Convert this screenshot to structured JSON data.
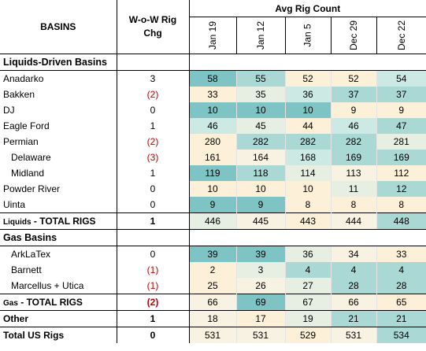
{
  "header": {
    "basins": "BASINS",
    "wow_line1": "W-o-W Rig",
    "wow_line2": "Chg",
    "avg": "Avg Rig Count",
    "dates": [
      "Jan 19",
      "Jan 12",
      "Jan 5",
      "Dec 29",
      "Dec 22"
    ]
  },
  "colors": {
    "teal_dark": "#7fc4c4",
    "teal_mid": "#a9d8d5",
    "teal_light": "#cde9e3",
    "neutral": "#e6efe2",
    "cream_light": "#f7f2e2",
    "cream": "#fcf0d8",
    "negative_text": "#c00000"
  },
  "sections": {
    "liquids": "Liquids-Driven Basins",
    "gas": "Gas Basins"
  },
  "rows": [
    {
      "id": "anadarko",
      "name": "Anadarko",
      "chg": "3",
      "neg": false,
      "values": [
        "58",
        "55",
        "52",
        "52",
        "54"
      ],
      "shades": [
        "teal_dark",
        "teal_mid",
        "cream",
        "cream",
        "teal_light"
      ],
      "indent": false
    },
    {
      "id": "bakken",
      "name": "Bakken",
      "chg": "(2)",
      "neg": true,
      "values": [
        "33",
        "35",
        "36",
        "37",
        "37"
      ],
      "shades": [
        "cream",
        "neutral",
        "teal_light",
        "teal_mid",
        "teal_mid"
      ],
      "indent": false
    },
    {
      "id": "dj",
      "name": "DJ",
      "chg": "0",
      "neg": false,
      "values": [
        "10",
        "10",
        "10",
        "9",
        "9"
      ],
      "shades": [
        "teal_dark",
        "teal_dark",
        "teal_dark",
        "cream",
        "cream"
      ],
      "indent": false
    },
    {
      "id": "eagle-ford",
      "name": "Eagle Ford",
      "chg": "1",
      "neg": false,
      "values": [
        "46",
        "45",
        "44",
        "46",
        "47"
      ],
      "shades": [
        "teal_light",
        "neutral",
        "cream",
        "teal_light",
        "teal_mid"
      ],
      "indent": false
    },
    {
      "id": "permian",
      "name": "Permian",
      "chg": "(2)",
      "neg": true,
      "values": [
        "280",
        "282",
        "282",
        "282",
        "281"
      ],
      "shades": [
        "cream",
        "teal_mid",
        "teal_mid",
        "teal_mid",
        "neutral"
      ],
      "indent": false
    },
    {
      "id": "delaware",
      "name": "Delaware",
      "chg": "(3)",
      "neg": true,
      "values": [
        "161",
        "164",
        "168",
        "169",
        "169"
      ],
      "shades": [
        "cream",
        "cream_light",
        "teal_light",
        "teal_mid",
        "teal_mid"
      ],
      "indent": true
    },
    {
      "id": "midland",
      "name": "Midland",
      "chg": "1",
      "neg": false,
      "values": [
        "119",
        "118",
        "114",
        "113",
        "112"
      ],
      "shades": [
        "teal_dark",
        "teal_mid",
        "neutral",
        "cream_light",
        "cream"
      ],
      "indent": true
    },
    {
      "id": "powder-river",
      "name": "Powder River",
      "chg": "0",
      "neg": false,
      "values": [
        "10",
        "10",
        "10",
        "11",
        "12"
      ],
      "shades": [
        "cream",
        "cream",
        "cream",
        "neutral",
        "teal_mid"
      ],
      "indent": false
    },
    {
      "id": "uinta",
      "name": "Uinta",
      "chg": "0",
      "neg": false,
      "values": [
        "9",
        "9",
        "8",
        "8",
        "8"
      ],
      "shades": [
        "teal_dark",
        "teal_dark",
        "cream",
        "cream",
        "cream"
      ],
      "indent": false
    }
  ],
  "liquids_total": {
    "prefix": "Liquids",
    "label": " - TOTAL RIGS",
    "chg": "1",
    "neg": false,
    "values": [
      "446",
      "445",
      "443",
      "444",
      "448"
    ],
    "shades": [
      "neutral",
      "cream_light",
      "cream",
      "cream_light",
      "teal_mid"
    ]
  },
  "gas_rows": [
    {
      "id": "arklatex",
      "name": "ArkLaTex",
      "chg": "0",
      "neg": false,
      "values": [
        "39",
        "39",
        "36",
        "34",
        "33"
      ],
      "shades": [
        "teal_dark",
        "teal_dark",
        "neutral",
        "cream_light",
        "cream"
      ],
      "indent": true
    },
    {
      "id": "barnett",
      "name": "Barnett",
      "chg": "(1)",
      "neg": true,
      "values": [
        "2",
        "3",
        "4",
        "4",
        "4"
      ],
      "shades": [
        "cream",
        "neutral",
        "teal_mid",
        "teal_mid",
        "teal_mid"
      ],
      "indent": true
    },
    {
      "id": "marcellus-utica",
      "name": "Marcellus + Utica",
      "chg": "(1)",
      "neg": true,
      "values": [
        "25",
        "26",
        "27",
        "28",
        "28"
      ],
      "shades": [
        "cream",
        "cream_light",
        "neutral",
        "teal_mid",
        "teal_mid"
      ],
      "indent": true
    }
  ],
  "gas_total": {
    "prefix": "Gas",
    "label": " - TOTAL RIGS",
    "chg": "(2)",
    "neg": true,
    "values": [
      "66",
      "69",
      "67",
      "66",
      "65"
    ],
    "shades": [
      "cream_light",
      "teal_dark",
      "neutral",
      "cream_light",
      "cream"
    ]
  },
  "other": {
    "name": "Other",
    "chg": "1",
    "neg": false,
    "values": [
      "18",
      "17",
      "19",
      "21",
      "21"
    ],
    "shades": [
      "cream_light",
      "cream",
      "neutral",
      "teal_mid",
      "teal_mid"
    ]
  },
  "total_us": {
    "name": "Total US Rigs",
    "chg": "0",
    "neg": false,
    "values": [
      "531",
      "531",
      "529",
      "531",
      "534"
    ],
    "shades": [
      "cream_light",
      "cream_light",
      "cream",
      "cream_light",
      "teal_mid"
    ]
  }
}
